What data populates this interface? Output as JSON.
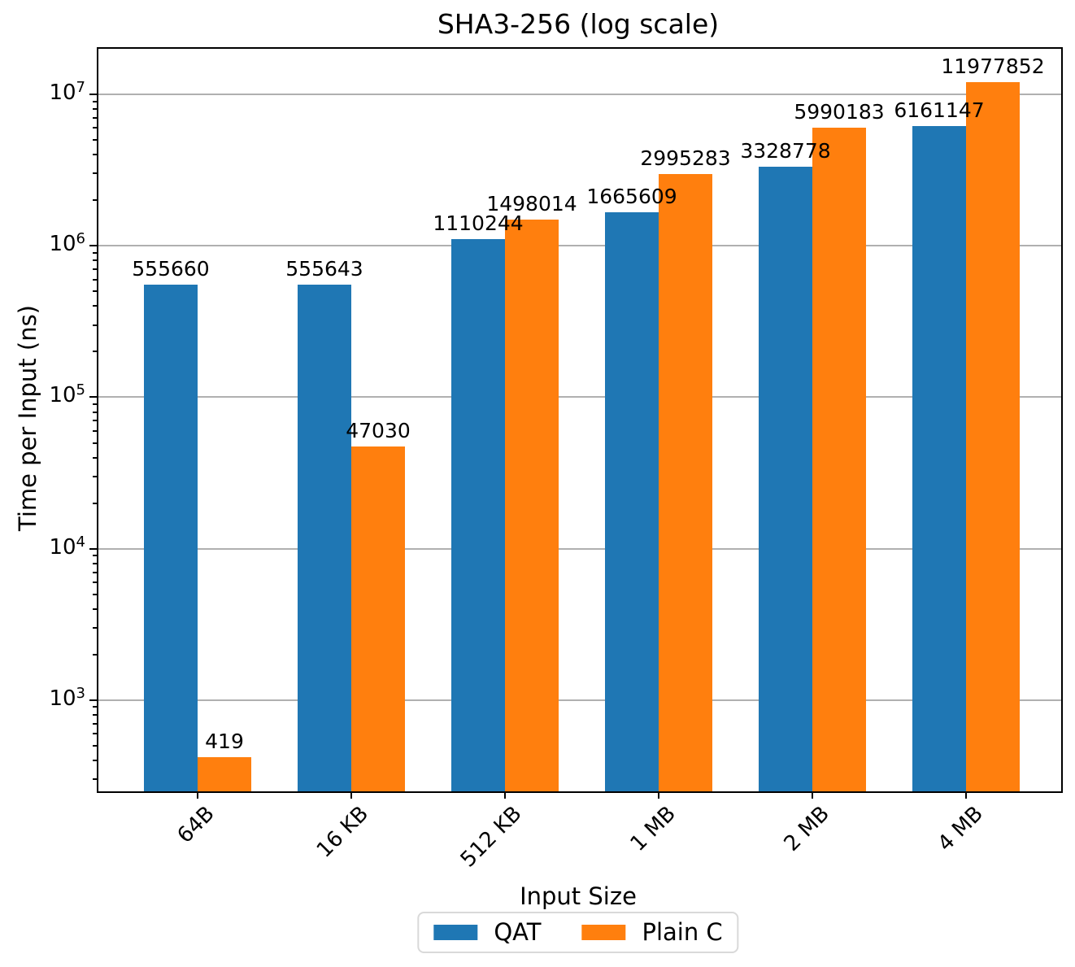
{
  "chart_data": {
    "type": "bar",
    "title": "SHA3-256 (log scale)",
    "xlabel": "Input Size",
    "ylabel": "Time per Input (ns)",
    "categories": [
      "64B",
      "16 KB",
      "512 KB",
      "1 MB",
      "2 MB",
      "4 MB"
    ],
    "series": [
      {
        "name": "QAT",
        "color": "#1f77b4",
        "values": [
          555660,
          555643,
          1110244,
          1665609,
          3328778,
          6161147
        ]
      },
      {
        "name": "Plain C",
        "color": "#ff7f0e",
        "values": [
          419,
          47030,
          1498014,
          2995283,
          5990183,
          11977852
        ]
      }
    ],
    "yscale": "log",
    "ylim": [
      250,
      20000000
    ],
    "ytick_exponents": [
      3,
      4,
      5,
      6,
      7
    ],
    "ytick_base": "10",
    "grid": true,
    "grid_color": "#b0b0b0",
    "legend_position": "bottom-center",
    "bar_labels_shown": true
  }
}
